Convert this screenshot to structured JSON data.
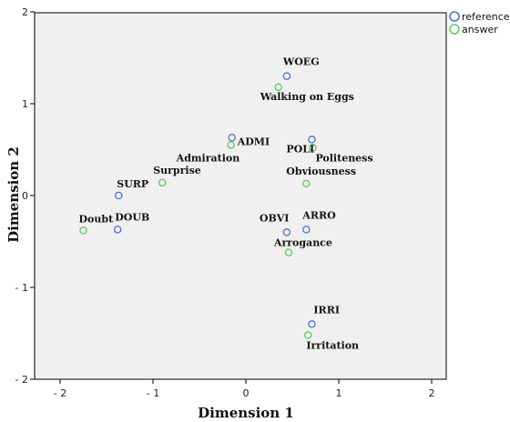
{
  "chart_data": {
    "type": "scatter",
    "xlabel": "Dimension 1",
    "ylabel": "Dimension 2",
    "xlim": [
      -2,
      2
    ],
    "ylim": [
      -2,
      2
    ],
    "grid": false,
    "legend_placement": "top-right",
    "x_ticks": [
      "- 2",
      "- 1",
      "0",
      "1",
      "2"
    ],
    "y_ticks": [
      "2",
      "1",
      "0",
      "- 1",
      "- 2"
    ],
    "series": [
      {
        "name": "reference",
        "color": "#4a6fd8",
        "points": [
          {
            "label": "WOEG",
            "x": 0.44,
            "y": 1.3
          },
          {
            "label": "ADMI",
            "x": -0.15,
            "y": 0.63
          },
          {
            "label": "POLI",
            "x": 0.71,
            "y": 0.61
          },
          {
            "label": "SURP",
            "x": -1.37,
            "y": 0.0
          },
          {
            "label": "DOUB",
            "x": -1.38,
            "y": -0.37
          },
          {
            "label": "OBVI",
            "x": 0.44,
            "y": -0.4
          },
          {
            "label": "ARRO",
            "x": 0.65,
            "y": -0.37
          },
          {
            "label": "IRRI",
            "x": 0.71,
            "y": -1.4
          }
        ]
      },
      {
        "name": "answer",
        "color": "#5ec85a",
        "points": [
          {
            "label": "Walking on Eggs",
            "x": 0.35,
            "y": 1.18
          },
          {
            "label": "Admiration",
            "x": -0.16,
            "y": 0.55
          },
          {
            "label": "Politeness",
            "x": 0.72,
            "y": 0.52
          },
          {
            "label": "Surprise",
            "x": -0.9,
            "y": 0.14
          },
          {
            "label": "Obviousness",
            "x": 0.65,
            "y": 0.13
          },
          {
            "label": "Doubt",
            "x": -1.75,
            "y": -0.38
          },
          {
            "label": "Arrogance",
            "x": 0.46,
            "y": -0.62
          },
          {
            "label": "Irritation",
            "x": 0.67,
            "y": -1.52
          }
        ]
      }
    ]
  }
}
